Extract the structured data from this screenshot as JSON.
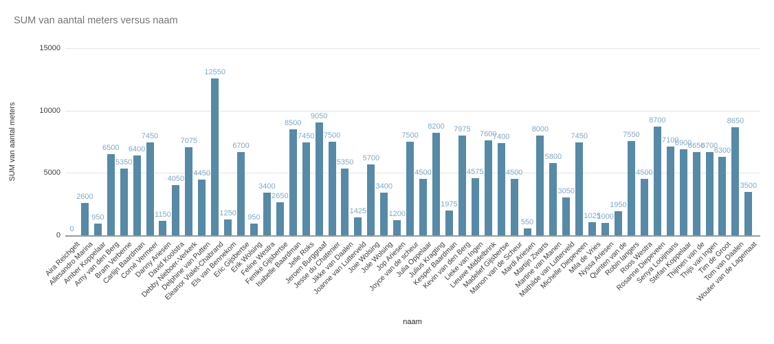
{
  "title": "SUM van aantal meters versus naam",
  "chart_data": {
    "type": "bar",
    "title": "SUM van aantal meters versus naam",
    "xlabel": "naam",
    "ylabel": "SUM van aantal meters",
    "ylim": [
      0,
      15000
    ],
    "yticks": [
      0,
      5000,
      10000,
      15000
    ],
    "grid": true,
    "legend": "none",
    "bar_color": "#568aa6",
    "value_label_color": "#7ea9c9",
    "categories": [
      "Aira Reichgelt",
      "Allesandro Marina",
      "Amber Koppelaar",
      "Amy van den Berg",
      "Bram Verberne",
      "Carlijn Baardman",
      "Corné Vermeer",
      "Danny Ariesen",
      "David Koolstra",
      "Debby Nieboer-Verkerk",
      "Delphine van Putten",
      "Eleanor Vialet-Chabrand",
      "Els van Bennekom",
      "Eric Gijsbertse",
      "Erik Wolsing",
      "Feline Westra",
      "Femke Gijsbertse",
      "Isabelle Baardman",
      "Jelle Roks",
      "Jeroen Burggraaf",
      "Jesse du Chatenier",
      "Jikke van Daalen",
      "Joanne van Lutterveld",
      "Joie Wolsing",
      "Jole Wolsing",
      "Jop Ariesen",
      "Joyce van de scheur",
      "Julia Oppelaar",
      "Julius Kragting",
      "Kesper Baardman",
      "Kevin van den Berg",
      "Lieke van Ingen",
      "Lieuwe Middelbrink",
      "Madelief Gijsbertse",
      "Manon van de Scheur",
      "Mardi Ariesen",
      "Martijn Zwarts",
      "Martine van Manen",
      "Mathilde van Lutterveld",
      "Michelle Diepeveen",
      "Mila de Vries",
      "Nyssa Ariesen",
      "Quinten van de",
      "Robin langers",
      "Roos Westra",
      "Rosanne Diepeveen",
      "Senya Looijmans",
      "Stefan Koppelaar",
      "Thijmen van de",
      "Thijs van Ingen",
      "Tim de Groot",
      "Tom van Daalen",
      "Wouter van de Lagemaat"
    ],
    "values": [
      0,
      2600,
      950,
      6500,
      5350,
      6400,
      7450,
      1150,
      4050,
      7075,
      4450,
      12550,
      1250,
      6700,
      950,
      3400,
      2650,
      8500,
      7450,
      9050,
      7500,
      5350,
      1425,
      5700,
      3400,
      1200,
      7500,
      4500,
      8200,
      1975,
      7975,
      4575,
      7600,
      7400,
      4500,
      550,
      8000,
      5800,
      3050,
      7450,
      1025,
      1000,
      1950,
      7550,
      4500,
      8700,
      7100,
      6900,
      6650,
      6700,
      6300,
      8650,
      3500
    ]
  }
}
